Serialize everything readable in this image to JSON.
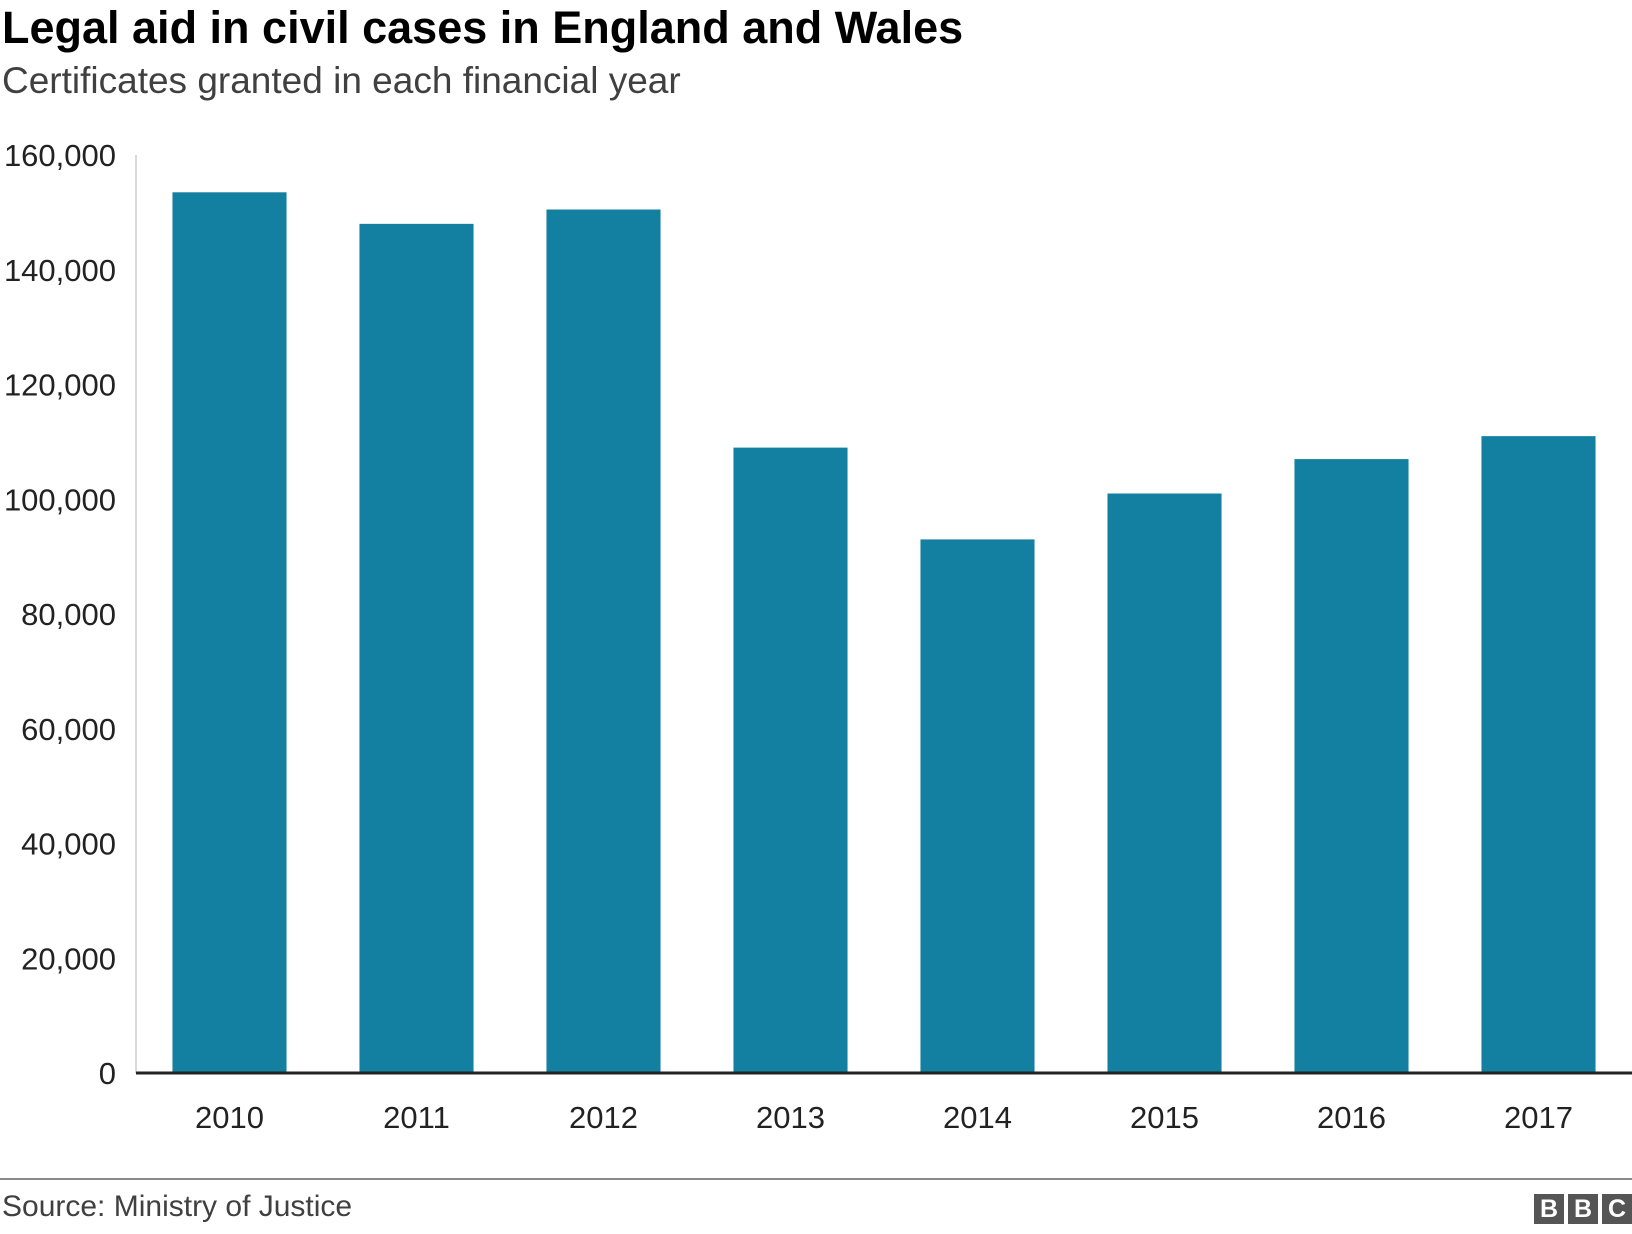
{
  "chart_data": {
    "type": "bar",
    "title": "Legal aid in civil cases in England and Wales",
    "subtitle": "Certificates granted in each financial year",
    "categories": [
      "2010",
      "2011",
      "2012",
      "2013",
      "2014",
      "2015",
      "2016",
      "2017"
    ],
    "values": [
      153500,
      148000,
      150500,
      109000,
      93000,
      101000,
      107000,
      111000
    ],
    "ylim": [
      0,
      160000
    ],
    "yticks": [
      0,
      20000,
      40000,
      60000,
      80000,
      100000,
      120000,
      140000,
      160000
    ],
    "ytick_labels": [
      "0",
      "20,000",
      "40,000",
      "60,000",
      "80,000",
      "100,000",
      "120,000",
      "140,000",
      "160,000"
    ],
    "xlabel": "",
    "ylabel": "",
    "grid": false,
    "bar_color": "#1380a1"
  },
  "footer": {
    "source": "Source: Ministry of Justice",
    "logo": [
      "B",
      "B",
      "C"
    ]
  }
}
